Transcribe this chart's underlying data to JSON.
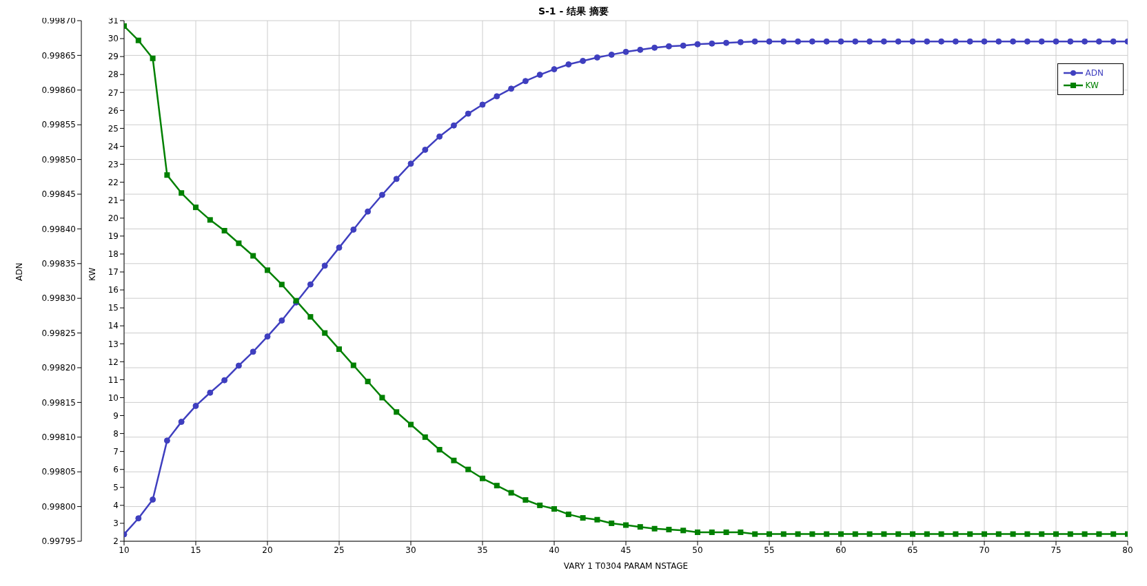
{
  "chart_data": {
    "type": "line",
    "title": "S-1 - 结果 摘要",
    "xlabel": "VARY   1 T0304    PARAM    NSTAGE",
    "ylabel": "ADN",
    "y2label": "KW",
    "x": [
      10,
      11,
      12,
      13,
      14,
      15,
      16,
      17,
      18,
      19,
      20,
      21,
      22,
      23,
      24,
      25,
      26,
      27,
      28,
      29,
      30,
      31,
      32,
      33,
      34,
      35,
      36,
      37,
      38,
      39,
      40,
      41,
      42,
      43,
      44,
      45,
      46,
      47,
      48,
      49,
      50,
      51,
      52,
      53,
      54,
      55,
      56,
      57,
      58,
      59,
      60,
      61,
      62,
      63,
      64,
      65,
      66,
      67,
      68,
      69,
      70,
      71,
      72,
      73,
      74,
      75,
      76,
      77,
      78,
      79,
      80
    ],
    "series": [
      {
        "name": "ADN",
        "color": "#3f3fbf",
        "marker": "circle",
        "values": [
          0.99796,
          0.997983,
          0.99801,
          0.998095,
          0.998122,
          0.998145,
          0.998164,
          0.998182,
          0.998203,
          0.998223,
          0.998245,
          0.998268,
          0.998294,
          0.99832,
          0.998347,
          0.998373,
          0.998399,
          0.998425,
          0.998449,
          0.998472,
          0.998494,
          0.998514,
          0.998533,
          0.998549,
          0.998566,
          0.998579,
          0.998591,
          0.998602,
          0.998613,
          0.998622,
          0.99863,
          0.998637,
          0.998642,
          0.998647,
          0.998651,
          0.998655,
          0.998658,
          0.998661,
          0.998663,
          0.998664,
          0.998666,
          0.998667,
          0.998668,
          0.998669,
          0.99867,
          0.99867,
          0.99867,
          0.99867,
          0.99867,
          0.99867,
          0.99867,
          0.99867,
          0.99867,
          0.99867,
          0.99867,
          0.99867,
          0.99867,
          0.99867,
          0.99867,
          0.99867,
          0.99867,
          0.99867,
          0.99867,
          0.99867,
          0.99867,
          0.99867,
          0.99867,
          0.99867,
          0.99867,
          0.99867,
          0.99867
        ]
      },
      {
        "name": "KW",
        "color": "#008000",
        "marker": "square",
        "axis": "y2",
        "values": [
          30.7,
          29.9,
          28.9,
          22.4,
          21.4,
          20.6,
          19.9,
          19.3,
          18.6,
          17.9,
          17.1,
          16.3,
          15.4,
          14.5,
          13.6,
          12.7,
          11.8,
          10.9,
          10.0,
          9.2,
          8.5,
          7.8,
          7.1,
          6.5,
          6.0,
          5.5,
          5.1,
          4.7,
          4.3,
          4.0,
          3.8,
          3.5,
          3.3,
          3.2,
          3.0,
          2.9,
          2.8,
          2.7,
          2.65,
          2.6,
          2.5,
          2.5,
          2.5,
          2.5,
          2.4,
          2.4,
          2.4,
          2.4,
          2.4,
          2.4,
          2.4,
          2.4,
          2.4,
          2.4,
          2.4,
          2.4,
          2.4,
          2.4,
          2.4,
          2.4,
          2.4,
          2.4,
          2.4,
          2.4,
          2.4,
          2.4,
          2.4,
          2.4,
          2.4,
          2.4,
          2.4
        ]
      }
    ],
    "xlim": [
      10,
      80
    ],
    "xticks": [
      10,
      15,
      20,
      25,
      30,
      35,
      40,
      45,
      50,
      55,
      60,
      65,
      70,
      75,
      80
    ],
    "ylim": [
      0.99795,
      0.9987
    ],
    "yticks": [
      0.99795,
      {
        "value": 0.998,
        "label": "0.99800"
      },
      0.99805,
      {
        "value": 0.9981,
        "label": "0.99810"
      },
      0.99815,
      {
        "value": 0.9982,
        "label": "0.99820"
      },
      0.99825,
      {
        "value": 0.9983,
        "label": "0.99830"
      },
      0.99835,
      {
        "value": 0.9984,
        "label": "0.99840"
      },
      0.99845,
      {
        "value": 0.9985,
        "label": "0.99850"
      },
      0.99855,
      {
        "value": 0.9986,
        "label": "0.99860"
      },
      0.99865,
      {
        "value": 0.9987,
        "label": "0.99870"
      }
    ],
    "y2lim": [
      2,
      31
    ],
    "y2ticks": [
      2,
      3,
      4,
      5,
      6,
      7,
      8,
      9,
      10,
      11,
      12,
      13,
      14,
      15,
      16,
      17,
      18,
      19,
      20,
      21,
      22,
      23,
      24,
      25,
      26,
      27,
      28,
      29,
      30,
      31
    ],
    "grid": true,
    "legend": "top right"
  }
}
